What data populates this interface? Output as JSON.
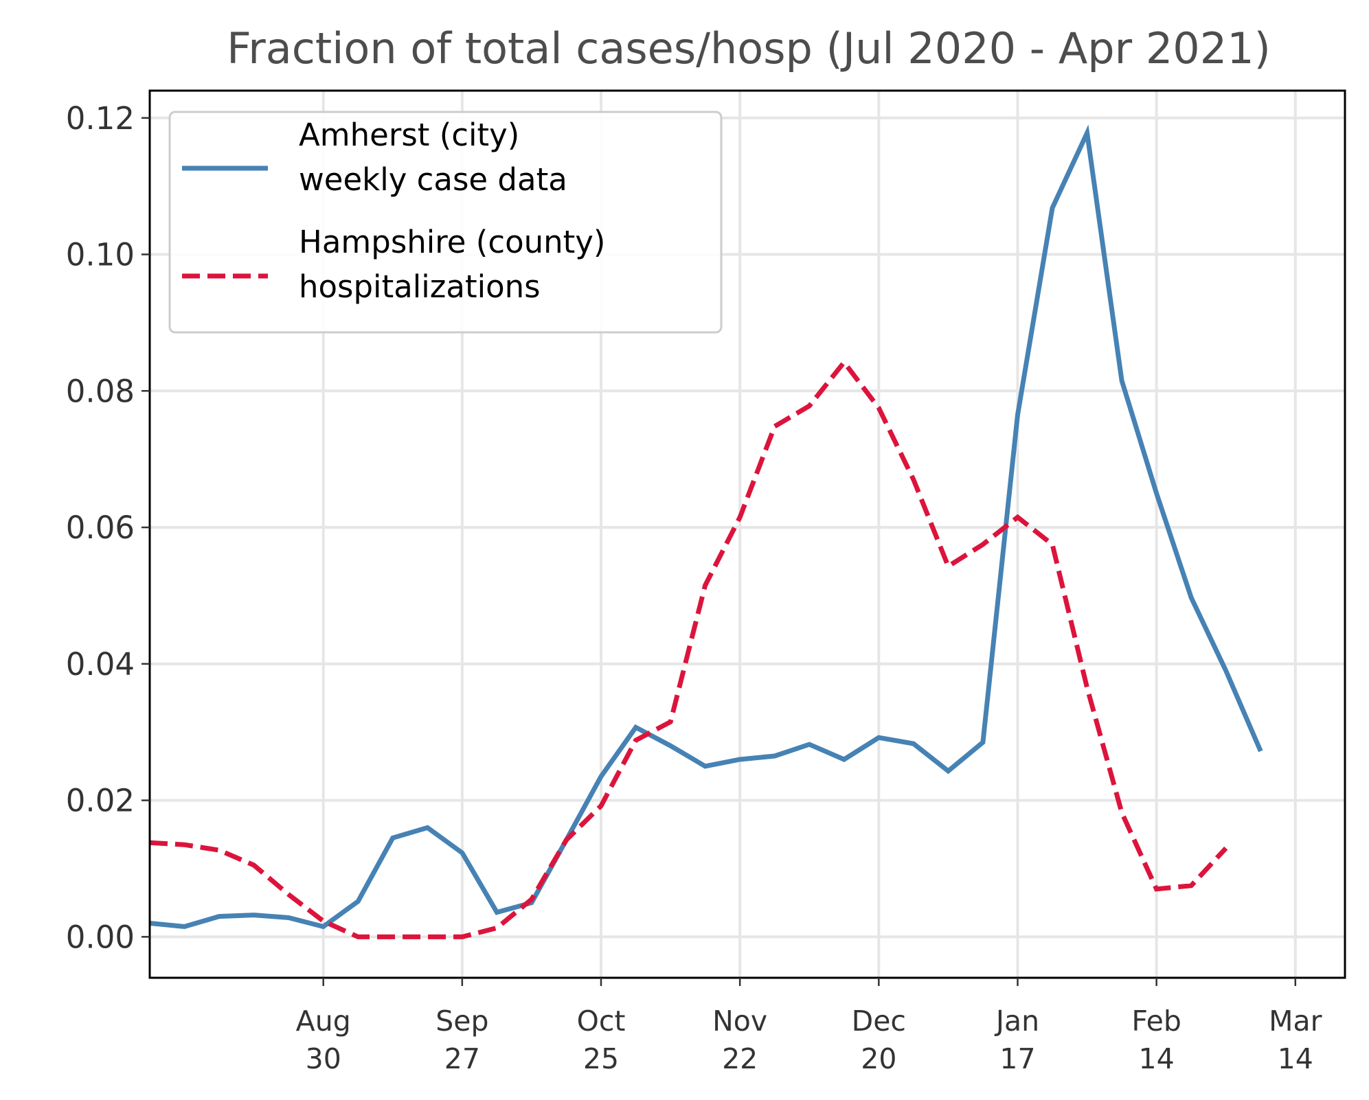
{
  "chart_data": {
    "type": "line",
    "title": "Fraction of total cases/hosp (Jul 2020 - Apr 2021)",
    "xlabel": "",
    "ylabel": "",
    "x_start": "2020-07-26",
    "x_range": [
      "2020-07-26",
      "2021-03-24"
    ],
    "ylim": [
      -0.006,
      0.124
    ],
    "grid": true,
    "legend_position": "upper-left",
    "yticks": [
      {
        "value": 0.0,
        "label": "0.00"
      },
      {
        "value": 0.02,
        "label": "0.02"
      },
      {
        "value": 0.04,
        "label": "0.04"
      },
      {
        "value": 0.06,
        "label": "0.06"
      },
      {
        "value": 0.08,
        "label": "0.08"
      },
      {
        "value": 0.1,
        "label": "0.10"
      },
      {
        "value": 0.12,
        "label": "0.12"
      }
    ],
    "xticks": [
      {
        "date": "2020-08-30",
        "month": "Aug",
        "day": "30"
      },
      {
        "date": "2020-09-27",
        "month": "Sep",
        "day": "27"
      },
      {
        "date": "2020-10-25",
        "month": "Oct",
        "day": "25"
      },
      {
        "date": "2020-11-22",
        "month": "Nov",
        "day": "22"
      },
      {
        "date": "2020-12-20",
        "month": "Dec",
        "day": "20"
      },
      {
        "date": "2021-01-17",
        "month": "Jan",
        "day": "17"
      },
      {
        "date": "2021-02-14",
        "month": "Feb",
        "day": "14"
      },
      {
        "date": "2021-03-14",
        "month": "Mar",
        "day": "14"
      }
    ],
    "series": [
      {
        "name": "Amherst (city)\nweekly case data",
        "legend_lines": [
          "Amherst (city)",
          "weekly case data"
        ],
        "color": "#4682b4",
        "style": "solid",
        "points": [
          {
            "date": "2020-07-26",
            "value": 0.002
          },
          {
            "date": "2020-08-02",
            "value": 0.0015
          },
          {
            "date": "2020-08-09",
            "value": 0.003
          },
          {
            "date": "2020-08-16",
            "value": 0.0032
          },
          {
            "date": "2020-08-23",
            "value": 0.0028
          },
          {
            "date": "2020-08-30",
            "value": 0.0015
          },
          {
            "date": "2020-09-06",
            "value": 0.0052
          },
          {
            "date": "2020-09-13",
            "value": 0.0145
          },
          {
            "date": "2020-09-20",
            "value": 0.016
          },
          {
            "date": "2020-09-27",
            "value": 0.0123
          },
          {
            "date": "2020-10-04",
            "value": 0.0036
          },
          {
            "date": "2020-10-11",
            "value": 0.005
          },
          {
            "date": "2020-10-18",
            "value": 0.0142
          },
          {
            "date": "2020-10-25",
            "value": 0.0235
          },
          {
            "date": "2020-11-01",
            "value": 0.0307
          },
          {
            "date": "2020-11-08",
            "value": 0.028
          },
          {
            "date": "2020-11-15",
            "value": 0.025
          },
          {
            "date": "2020-11-22",
            "value": 0.026
          },
          {
            "date": "2020-11-29",
            "value": 0.0265
          },
          {
            "date": "2020-12-06",
            "value": 0.0282
          },
          {
            "date": "2020-12-13",
            "value": 0.026
          },
          {
            "date": "2020-12-20",
            "value": 0.0292
          },
          {
            "date": "2020-12-27",
            "value": 0.0283
          },
          {
            "date": "2021-01-03",
            "value": 0.0243
          },
          {
            "date": "2021-01-10",
            "value": 0.0285
          },
          {
            "date": "2021-01-17",
            "value": 0.0765
          },
          {
            "date": "2021-01-24",
            "value": 0.1068
          },
          {
            "date": "2021-01-31",
            "value": 0.1178
          },
          {
            "date": "2021-02-07",
            "value": 0.0815
          },
          {
            "date": "2021-02-14",
            "value": 0.065
          },
          {
            "date": "2021-02-21",
            "value": 0.0497
          },
          {
            "date": "2021-02-28",
            "value": 0.039
          },
          {
            "date": "2021-03-07",
            "value": 0.0272
          }
        ]
      },
      {
        "name": "Hampshire (county)\nhospitalizations",
        "legend_lines": [
          "Hampshire (county)",
          "hospitalizations"
        ],
        "color": "#dc143c",
        "style": "dashed",
        "points": [
          {
            "date": "2020-07-26",
            "value": 0.0138
          },
          {
            "date": "2020-08-02",
            "value": 0.0135
          },
          {
            "date": "2020-08-09",
            "value": 0.0127
          },
          {
            "date": "2020-08-16",
            "value": 0.0105
          },
          {
            "date": "2020-08-23",
            "value": 0.0062
          },
          {
            "date": "2020-08-30",
            "value": 0.0023
          },
          {
            "date": "2020-09-06",
            "value": 0.0
          },
          {
            "date": "2020-09-13",
            "value": 0.0
          },
          {
            "date": "2020-09-20",
            "value": 0.0
          },
          {
            "date": "2020-09-27",
            "value": 0.0
          },
          {
            "date": "2020-10-04",
            "value": 0.0013
          },
          {
            "date": "2020-10-11",
            "value": 0.0055
          },
          {
            "date": "2020-10-18",
            "value": 0.0142
          },
          {
            "date": "2020-10-25",
            "value": 0.0192
          },
          {
            "date": "2020-11-01",
            "value": 0.0288
          },
          {
            "date": "2020-11-08",
            "value": 0.0315
          },
          {
            "date": "2020-11-15",
            "value": 0.0515
          },
          {
            "date": "2020-11-22",
            "value": 0.0615
          },
          {
            "date": "2020-11-29",
            "value": 0.0748
          },
          {
            "date": "2020-12-06",
            "value": 0.0778
          },
          {
            "date": "2020-12-13",
            "value": 0.0842
          },
          {
            "date": "2020-12-20",
            "value": 0.0775
          },
          {
            "date": "2020-12-27",
            "value": 0.067
          },
          {
            "date": "2021-01-03",
            "value": 0.0543
          },
          {
            "date": "2021-01-10",
            "value": 0.0575
          },
          {
            "date": "2021-01-17",
            "value": 0.0615
          },
          {
            "date": "2021-01-24",
            "value": 0.0575
          },
          {
            "date": "2021-01-31",
            "value": 0.0365
          },
          {
            "date": "2021-02-07",
            "value": 0.0182
          },
          {
            "date": "2021-02-14",
            "value": 0.007
          },
          {
            "date": "2021-02-21",
            "value": 0.0075
          },
          {
            "date": "2021-02-28",
            "value": 0.013
          }
        ]
      }
    ]
  }
}
